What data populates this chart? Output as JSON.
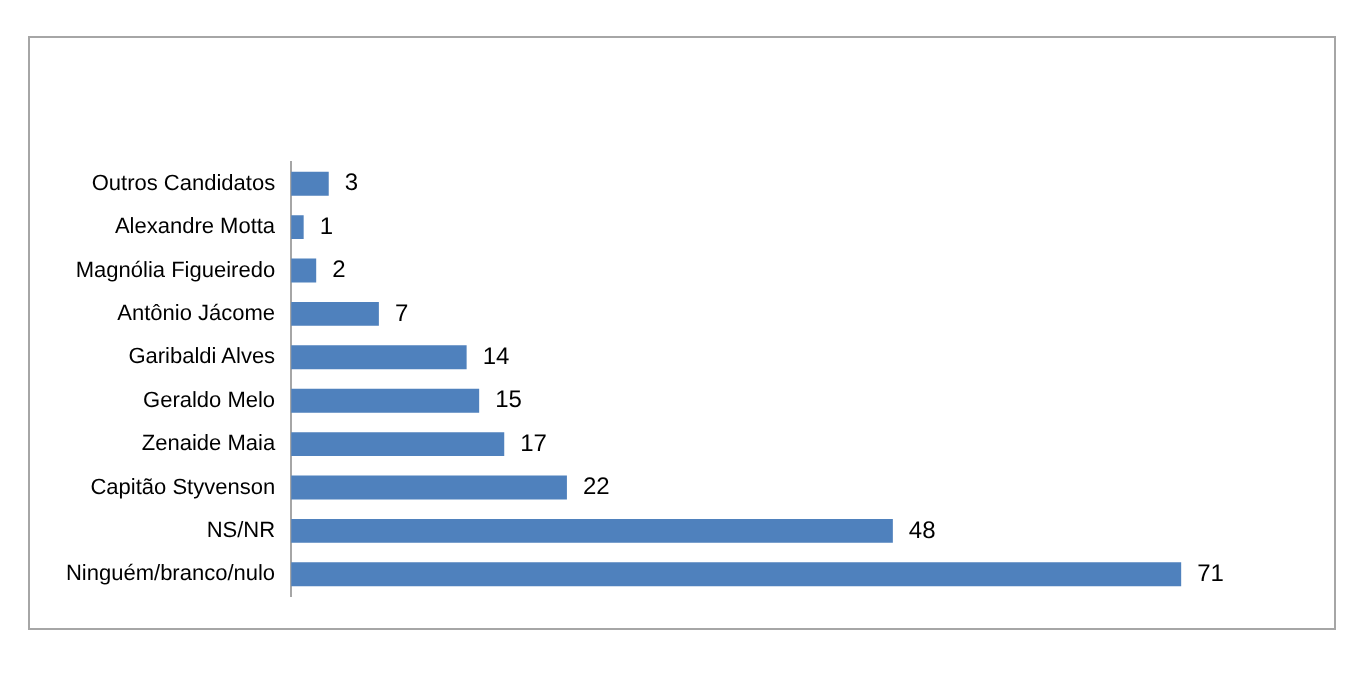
{
  "chart_data": {
    "type": "bar",
    "orientation": "horizontal",
    "categories": [
      "Outros Candidatos",
      "Alexandre Motta",
      "Magnólia Figueiredo",
      "Antônio Jácome",
      "Garibaldi Alves",
      "Geraldo Melo",
      "Zenaide Maia",
      "Capitão Styvenson",
      "NS/NR",
      "Ninguém/branco/nulo"
    ],
    "values": [
      3,
      1,
      2,
      7,
      14,
      15,
      17,
      22,
      48,
      71
    ],
    "color": "#4f81bd",
    "data_labels": true,
    "grid": false,
    "legend": false,
    "tick_labels": "y"
  }
}
